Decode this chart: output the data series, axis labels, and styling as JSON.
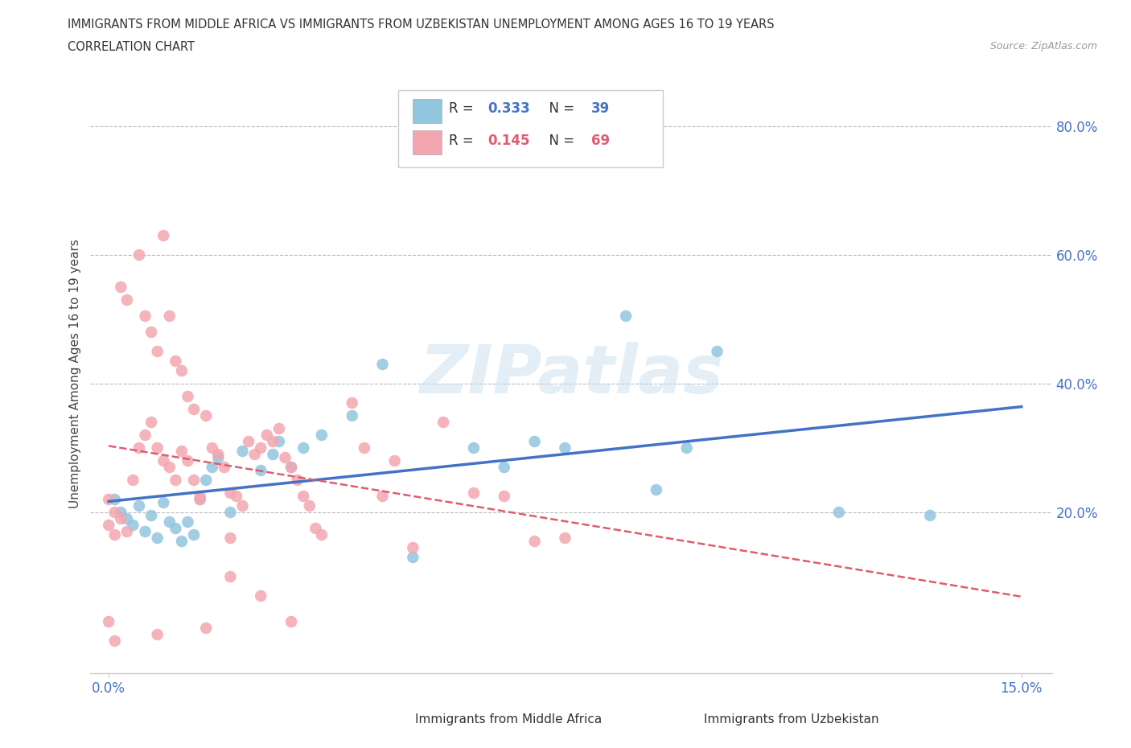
{
  "title_line1": "IMMIGRANTS FROM MIDDLE AFRICA VS IMMIGRANTS FROM UZBEKISTAN UNEMPLOYMENT AMONG AGES 16 TO 19 YEARS",
  "title_line2": "CORRELATION CHART",
  "source": "Source: ZipAtlas.com",
  "ylabel": "Unemployment Among Ages 16 to 19 years",
  "xlim": [
    -0.003,
    0.155
  ],
  "ylim": [
    -0.05,
    0.88
  ],
  "color_blue": "#92C5DE",
  "color_pink": "#F4A6B0",
  "color_blue_dark": "#4472C4",
  "color_pink_dark": "#E05C6E",
  "watermark": "ZIPatlas",
  "blue_x": [
    0.001,
    0.002,
    0.003,
    0.004,
    0.005,
    0.006,
    0.007,
    0.008,
    0.009,
    0.01,
    0.011,
    0.012,
    0.013,
    0.014,
    0.015,
    0.016,
    0.017,
    0.018,
    0.02,
    0.022,
    0.025,
    0.027,
    0.028,
    0.03,
    0.032,
    0.035,
    0.04,
    0.045,
    0.05,
    0.06,
    0.065,
    0.07,
    0.075,
    0.085,
    0.09,
    0.095,
    0.1,
    0.12,
    0.135
  ],
  "blue_y": [
    0.22,
    0.2,
    0.19,
    0.18,
    0.21,
    0.17,
    0.195,
    0.16,
    0.215,
    0.185,
    0.175,
    0.155,
    0.185,
    0.165,
    0.22,
    0.25,
    0.27,
    0.285,
    0.2,
    0.295,
    0.265,
    0.29,
    0.31,
    0.27,
    0.3,
    0.32,
    0.35,
    0.43,
    0.13,
    0.3,
    0.27,
    0.31,
    0.3,
    0.505,
    0.235,
    0.3,
    0.45,
    0.2,
    0.195
  ],
  "pink_x": [
    0.0,
    0.001,
    0.002,
    0.003,
    0.004,
    0.005,
    0.006,
    0.007,
    0.008,
    0.009,
    0.01,
    0.011,
    0.012,
    0.013,
    0.014,
    0.015,
    0.016,
    0.017,
    0.018,
    0.019,
    0.02,
    0.021,
    0.022,
    0.023,
    0.024,
    0.025,
    0.026,
    0.027,
    0.028,
    0.029,
    0.03,
    0.031,
    0.032,
    0.033,
    0.034,
    0.035,
    0.04,
    0.042,
    0.045,
    0.047,
    0.05,
    0.055,
    0.06,
    0.065,
    0.07,
    0.075,
    0.0,
    0.001,
    0.002,
    0.003,
    0.005,
    0.006,
    0.007,
    0.008,
    0.009,
    0.01,
    0.011,
    0.012,
    0.013,
    0.014,
    0.015,
    0.016,
    0.02,
    0.025,
    0.03,
    0.0,
    0.001,
    0.008,
    0.02
  ],
  "pink_y": [
    0.22,
    0.2,
    0.19,
    0.17,
    0.25,
    0.3,
    0.32,
    0.34,
    0.3,
    0.28,
    0.27,
    0.25,
    0.295,
    0.28,
    0.25,
    0.22,
    0.35,
    0.3,
    0.29,
    0.27,
    0.23,
    0.225,
    0.21,
    0.31,
    0.29,
    0.3,
    0.32,
    0.31,
    0.33,
    0.285,
    0.27,
    0.25,
    0.225,
    0.21,
    0.175,
    0.165,
    0.37,
    0.3,
    0.225,
    0.28,
    0.145,
    0.34,
    0.23,
    0.225,
    0.155,
    0.16,
    0.18,
    0.165,
    0.55,
    0.53,
    0.6,
    0.505,
    0.48,
    0.45,
    0.63,
    0.505,
    0.435,
    0.42,
    0.38,
    0.36,
    0.225,
    0.02,
    0.1,
    0.07,
    0.03,
    0.03,
    0.0,
    0.01,
    0.16
  ]
}
